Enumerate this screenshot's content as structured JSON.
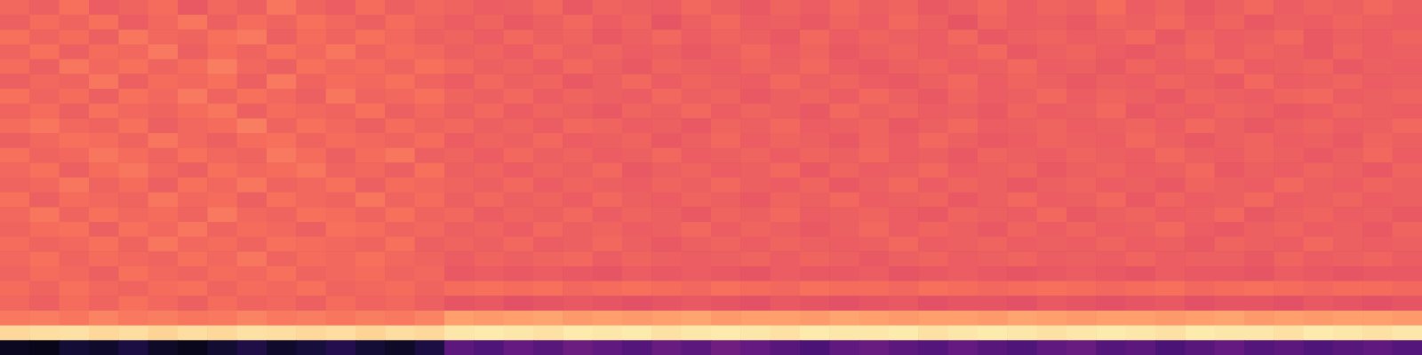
{
  "chart_data": {
    "type": "heatmap",
    "color": "magma",
    "zlim": [
      0,
      1
    ],
    "tick_labels": false,
    "cells": [
      [
        0.68,
        0.66,
        0.7,
        0.65,
        0.67,
        0.69,
        0.64,
        0.68,
        0.66,
        0.71,
        0.67,
        0.65,
        0.69,
        0.66,
        0.68,
        0.67,
        0.65,
        0.66,
        0.68,
        0.64,
        0.67,
        0.66,
        0.65,
        0.68,
        0.66,
        0.64,
        0.67,
        0.65,
        0.68,
        0.66,
        0.67,
        0.64,
        0.66,
        0.68,
        0.65,
        0.67,
        0.66,
        0.69,
        0.65,
        0.67,
        0.64,
        0.66,
        0.68,
        0.65,
        0.67,
        0.66,
        0.68,
        0.66
      ],
      [
        0.66,
        0.69,
        0.67,
        0.7,
        0.65,
        0.68,
        0.71,
        0.66,
        0.69,
        0.67,
        0.7,
        0.68,
        0.66,
        0.69,
        0.67,
        0.65,
        0.67,
        0.64,
        0.66,
        0.68,
        0.65,
        0.67,
        0.63,
        0.66,
        0.68,
        0.65,
        0.66,
        0.64,
        0.67,
        0.65,
        0.68,
        0.66,
        0.63,
        0.67,
        0.65,
        0.66,
        0.64,
        0.67,
        0.66,
        0.68,
        0.65,
        0.67,
        0.64,
        0.66,
        0.65,
        0.67,
        0.66,
        0.65
      ],
      [
        0.7,
        0.67,
        0.69,
        0.66,
        0.71,
        0.68,
        0.67,
        0.7,
        0.72,
        0.66,
        0.69,
        0.67,
        0.7,
        0.68,
        0.66,
        0.67,
        0.65,
        0.68,
        0.66,
        0.67,
        0.64,
        0.66,
        0.68,
        0.65,
        0.67,
        0.66,
        0.64,
        0.68,
        0.65,
        0.67,
        0.66,
        0.65,
        0.68,
        0.64,
        0.66,
        0.67,
        0.65,
        0.66,
        0.68,
        0.64,
        0.67,
        0.65,
        0.66,
        0.68,
        0.64,
        0.66,
        0.65,
        0.67
      ],
      [
        0.67,
        0.7,
        0.66,
        0.69,
        0.68,
        0.72,
        0.66,
        0.69,
        0.67,
        0.7,
        0.68,
        0.71,
        0.67,
        0.69,
        0.68,
        0.66,
        0.67,
        0.65,
        0.68,
        0.66,
        0.67,
        0.65,
        0.66,
        0.64,
        0.66,
        0.68,
        0.65,
        0.67,
        0.64,
        0.66,
        0.67,
        0.65,
        0.66,
        0.68,
        0.64,
        0.66,
        0.67,
        0.65,
        0.64,
        0.66,
        0.68,
        0.65,
        0.67,
        0.66,
        0.64,
        0.67,
        0.65,
        0.66
      ],
      [
        0.69,
        0.66,
        0.71,
        0.68,
        0.7,
        0.67,
        0.69,
        0.73,
        0.68,
        0.66,
        0.7,
        0.68,
        0.69,
        0.67,
        0.7,
        0.68,
        0.66,
        0.67,
        0.65,
        0.68,
        0.66,
        0.64,
        0.67,
        0.66,
        0.65,
        0.67,
        0.66,
        0.68,
        0.65,
        0.64,
        0.66,
        0.67,
        0.65,
        0.66,
        0.68,
        0.65,
        0.66,
        0.64,
        0.67,
        0.65,
        0.66,
        0.68,
        0.65,
        0.66,
        0.67,
        0.64,
        0.66,
        0.65
      ],
      [
        0.66,
        0.68,
        0.67,
        0.71,
        0.66,
        0.69,
        0.68,
        0.7,
        0.66,
        0.72,
        0.67,
        0.69,
        0.68,
        0.7,
        0.67,
        0.65,
        0.68,
        0.66,
        0.67,
        0.64,
        0.66,
        0.68,
        0.65,
        0.67,
        0.66,
        0.65,
        0.68,
        0.66,
        0.67,
        0.65,
        0.64,
        0.66,
        0.68,
        0.65,
        0.67,
        0.66,
        0.64,
        0.66,
        0.65,
        0.67,
        0.66,
        0.64,
        0.68,
        0.65,
        0.66,
        0.67,
        0.65,
        0.66
      ],
      [
        0.7,
        0.67,
        0.69,
        0.66,
        0.7,
        0.68,
        0.72,
        0.67,
        0.7,
        0.68,
        0.66,
        0.71,
        0.67,
        0.68,
        0.7,
        0.67,
        0.66,
        0.68,
        0.65,
        0.67,
        0.66,
        0.65,
        0.68,
        0.66,
        0.67,
        0.64,
        0.66,
        0.67,
        0.65,
        0.68,
        0.66,
        0.64,
        0.67,
        0.65,
        0.66,
        0.68,
        0.65,
        0.67,
        0.66,
        0.64,
        0.67,
        0.66,
        0.65,
        0.67,
        0.68,
        0.65,
        0.66,
        0.67
      ],
      [
        0.67,
        0.69,
        0.66,
        0.7,
        0.68,
        0.67,
        0.69,
        0.71,
        0.66,
        0.69,
        0.68,
        0.67,
        0.7,
        0.66,
        0.68,
        0.66,
        0.68,
        0.65,
        0.67,
        0.66,
        0.64,
        0.67,
        0.66,
        0.68,
        0.65,
        0.67,
        0.66,
        0.64,
        0.68,
        0.66,
        0.67,
        0.65,
        0.66,
        0.64,
        0.67,
        0.65,
        0.66,
        0.68,
        0.64,
        0.66,
        0.65,
        0.67,
        0.66,
        0.64,
        0.65,
        0.67,
        0.66,
        0.65
      ],
      [
        0.69,
        0.71,
        0.68,
        0.67,
        0.7,
        0.66,
        0.68,
        0.69,
        0.73,
        0.67,
        0.7,
        0.68,
        0.66,
        0.69,
        0.67,
        0.68,
        0.66,
        0.67,
        0.65,
        0.68,
        0.67,
        0.65,
        0.66,
        0.64,
        0.67,
        0.66,
        0.68,
        0.65,
        0.66,
        0.67,
        0.64,
        0.66,
        0.68,
        0.65,
        0.66,
        0.67,
        0.65,
        0.66,
        0.67,
        0.65,
        0.68,
        0.66,
        0.64,
        0.66,
        0.67,
        0.65,
        0.66,
        0.68
      ],
      [
        0.66,
        0.68,
        0.7,
        0.69,
        0.67,
        0.71,
        0.68,
        0.66,
        0.69,
        0.7,
        0.67,
        0.69,
        0.68,
        0.67,
        0.69,
        0.65,
        0.67,
        0.66,
        0.68,
        0.65,
        0.66,
        0.67,
        0.64,
        0.66,
        0.68,
        0.65,
        0.67,
        0.66,
        0.64,
        0.67,
        0.65,
        0.68,
        0.66,
        0.64,
        0.65,
        0.67,
        0.66,
        0.65,
        0.68,
        0.66,
        0.64,
        0.66,
        0.67,
        0.65,
        0.66,
        0.64,
        0.67,
        0.66
      ],
      [
        0.7,
        0.67,
        0.68,
        0.71,
        0.69,
        0.67,
        0.7,
        0.68,
        0.67,
        0.72,
        0.69,
        0.66,
        0.69,
        0.71,
        0.66,
        0.67,
        0.65,
        0.68,
        0.66,
        0.67,
        0.65,
        0.66,
        0.68,
        0.65,
        0.66,
        0.67,
        0.65,
        0.67,
        0.66,
        0.68,
        0.65,
        0.66,
        0.64,
        0.67,
        0.66,
        0.65,
        0.67,
        0.66,
        0.65,
        0.68,
        0.66,
        0.65,
        0.67,
        0.66,
        0.64,
        0.66,
        0.68,
        0.65
      ],
      [
        0.68,
        0.7,
        0.66,
        0.69,
        0.71,
        0.68,
        0.66,
        0.7,
        0.68,
        0.69,
        0.71,
        0.67,
        0.68,
        0.66,
        0.7,
        0.66,
        0.67,
        0.65,
        0.67,
        0.66,
        0.68,
        0.64,
        0.66,
        0.67,
        0.65,
        0.66,
        0.68,
        0.64,
        0.67,
        0.65,
        0.66,
        0.68,
        0.65,
        0.66,
        0.67,
        0.64,
        0.66,
        0.67,
        0.65,
        0.66,
        0.68,
        0.64,
        0.66,
        0.65,
        0.67,
        0.66,
        0.64,
        0.67
      ],
      [
        0.67,
        0.68,
        0.71,
        0.67,
        0.69,
        0.66,
        0.7,
        0.68,
        0.71,
        0.67,
        0.68,
        0.7,
        0.66,
        0.69,
        0.68,
        0.67,
        0.66,
        0.68,
        0.65,
        0.67,
        0.66,
        0.65,
        0.67,
        0.66,
        0.68,
        0.66,
        0.65,
        0.67,
        0.64,
        0.66,
        0.68,
        0.65,
        0.67,
        0.66,
        0.64,
        0.66,
        0.67,
        0.65,
        0.66,
        0.64,
        0.67,
        0.66,
        0.65,
        0.68,
        0.66,
        0.65,
        0.67,
        0.66
      ],
      [
        0.7,
        0.66,
        0.69,
        0.68,
        0.67,
        0.71,
        0.68,
        0.69,
        0.66,
        0.7,
        0.68,
        0.67,
        0.71,
        0.67,
        0.69,
        0.66,
        0.68,
        0.66,
        0.67,
        0.65,
        0.68,
        0.66,
        0.65,
        0.67,
        0.66,
        0.64,
        0.67,
        0.66,
        0.68,
        0.65,
        0.66,
        0.67,
        0.64,
        0.66,
        0.68,
        0.65,
        0.66,
        0.68,
        0.64,
        0.67,
        0.65,
        0.66,
        0.68,
        0.65,
        0.66,
        0.67,
        0.65,
        0.66
      ],
      [
        0.68,
        0.71,
        0.67,
        0.7,
        0.68,
        0.69,
        0.67,
        0.72,
        0.68,
        0.67,
        0.7,
        0.69,
        0.67,
        0.7,
        0.67,
        0.68,
        0.65,
        0.67,
        0.66,
        0.68,
        0.65,
        0.67,
        0.66,
        0.64,
        0.67,
        0.66,
        0.68,
        0.65,
        0.66,
        0.67,
        0.65,
        0.64,
        0.67,
        0.66,
        0.65,
        0.68,
        0.64,
        0.66,
        0.67,
        0.65,
        0.66,
        0.68,
        0.64,
        0.66,
        0.67,
        0.65,
        0.66,
        0.64
      ],
      [
        0.67,
        0.69,
        0.7,
        0.66,
        0.7,
        0.68,
        0.71,
        0.67,
        0.69,
        0.68,
        0.66,
        0.7,
        0.69,
        0.67,
        0.68,
        0.66,
        0.67,
        0.65,
        0.68,
        0.66,
        0.67,
        0.65,
        0.66,
        0.68,
        0.65,
        0.67,
        0.66,
        0.64,
        0.66,
        0.68,
        0.65,
        0.67,
        0.66,
        0.64,
        0.67,
        0.65,
        0.67,
        0.65,
        0.66,
        0.68,
        0.65,
        0.64,
        0.66,
        0.67,
        0.65,
        0.66,
        0.64,
        0.67
      ],
      [
        0.69,
        0.67,
        0.68,
        0.7,
        0.67,
        0.71,
        0.68,
        0.69,
        0.67,
        0.7,
        0.69,
        0.68,
        0.67,
        0.7,
        0.66,
        0.67,
        0.66,
        0.68,
        0.65,
        0.66,
        0.68,
        0.66,
        0.64,
        0.66,
        0.67,
        0.65,
        0.67,
        0.66,
        0.65,
        0.66,
        0.68,
        0.65,
        0.66,
        0.67,
        0.65,
        0.66,
        0.65,
        0.67,
        0.65,
        0.66,
        0.64,
        0.67,
        0.66,
        0.65,
        0.68,
        0.66,
        0.65,
        0.66
      ],
      [
        0.68,
        0.7,
        0.67,
        0.69,
        0.68,
        0.67,
        0.7,
        0.68,
        0.71,
        0.67,
        0.69,
        0.68,
        0.7,
        0.68,
        0.67,
        0.65,
        0.67,
        0.66,
        0.67,
        0.68,
        0.65,
        0.67,
        0.66,
        0.65,
        0.66,
        0.67,
        0.65,
        0.67,
        0.66,
        0.64,
        0.66,
        0.67,
        0.65,
        0.66,
        0.67,
        0.65,
        0.66,
        0.65,
        0.67,
        0.65,
        0.66,
        0.66,
        0.64,
        0.67,
        0.65,
        0.66,
        0.67,
        0.65
      ],
      [
        0.67,
        0.69,
        0.68,
        0.66,
        0.7,
        0.68,
        0.67,
        0.69,
        0.68,
        0.7,
        0.67,
        0.68,
        0.69,
        0.67,
        0.68,
        0.64,
        0.65,
        0.64,
        0.65,
        0.64,
        0.63,
        0.65,
        0.64,
        0.65,
        0.64,
        0.63,
        0.65,
        0.64,
        0.64,
        0.65,
        0.63,
        0.64,
        0.65,
        0.64,
        0.63,
        0.64,
        0.65,
        0.64,
        0.63,
        0.65,
        0.64,
        0.64,
        0.63,
        0.65,
        0.64,
        0.63,
        0.64,
        0.64
      ],
      [
        0.69,
        0.67,
        0.7,
        0.68,
        0.67,
        0.69,
        0.7,
        0.67,
        0.69,
        0.68,
        0.7,
        0.67,
        0.68,
        0.69,
        0.67,
        0.69,
        0.7,
        0.69,
        0.7,
        0.68,
        0.69,
        0.7,
        0.69,
        0.68,
        0.7,
        0.69,
        0.68,
        0.7,
        0.69,
        0.69,
        0.68,
        0.7,
        0.69,
        0.68,
        0.69,
        0.7,
        0.69,
        0.68,
        0.69,
        0.7,
        0.68,
        0.69,
        0.7,
        0.69,
        0.68,
        0.69,
        0.69,
        0.68
      ],
      [
        0.68,
        0.66,
        0.69,
        0.67,
        0.7,
        0.68,
        0.66,
        0.69,
        0.67,
        0.68,
        0.66,
        0.69,
        0.67,
        0.68,
        0.66,
        0.63,
        0.64,
        0.62,
        0.63,
        0.64,
        0.63,
        0.62,
        0.63,
        0.64,
        0.63,
        0.62,
        0.64,
        0.63,
        0.62,
        0.63,
        0.64,
        0.62,
        0.63,
        0.63,
        0.62,
        0.64,
        0.63,
        0.62,
        0.63,
        0.64,
        0.62,
        0.63,
        0.63,
        0.62,
        0.64,
        0.63,
        0.62,
        0.63
      ],
      [
        0.72,
        0.73,
        0.71,
        0.74,
        0.72,
        0.73,
        0.71,
        0.72,
        0.74,
        0.72,
        0.73,
        0.71,
        0.73,
        0.72,
        0.74,
        0.8,
        0.79,
        0.8,
        0.81,
        0.79,
        0.8,
        0.79,
        0.8,
        0.81,
        0.79,
        0.8,
        0.8,
        0.79,
        0.81,
        0.8,
        0.79,
        0.8,
        0.8,
        0.79,
        0.81,
        0.8,
        0.79,
        0.8,
        0.8,
        0.79,
        0.8,
        0.81,
        0.79,
        0.8,
        0.79,
        0.8,
        0.8,
        0.79
      ],
      [
        0.92,
        0.93,
        0.94,
        0.92,
        0.93,
        0.91,
        0.93,
        0.92,
        0.94,
        0.93,
        0.92,
        0.93,
        0.91,
        0.93,
        0.92,
        0.95,
        0.96,
        0.95,
        0.94,
        0.96,
        0.95,
        0.96,
        0.94,
        0.95,
        0.96,
        0.95,
        0.94,
        0.96,
        0.95,
        0.95,
        0.96,
        0.94,
        0.95,
        0.96,
        0.95,
        0.94,
        0.95,
        0.96,
        0.95,
        0.94,
        0.96,
        0.95,
        0.95,
        0.94,
        0.96,
        0.95,
        0.94,
        0.95
      ],
      [
        0.06,
        0.04,
        0.1,
        0.08,
        0.12,
        0.07,
        0.05,
        0.09,
        0.13,
        0.08,
        0.11,
        0.14,
        0.1,
        0.07,
        0.12,
        0.28,
        0.25,
        0.3,
        0.27,
        0.32,
        0.29,
        0.26,
        0.31,
        0.28,
        0.33,
        0.3,
        0.27,
        0.24,
        0.29,
        0.31,
        0.28,
        0.26,
        0.3,
        0.27,
        0.25,
        0.29,
        0.31,
        0.26,
        0.28,
        0.24,
        0.27,
        0.3,
        0.26,
        0.28,
        0.25,
        0.27,
        0.29,
        0.26
      ]
    ]
  }
}
